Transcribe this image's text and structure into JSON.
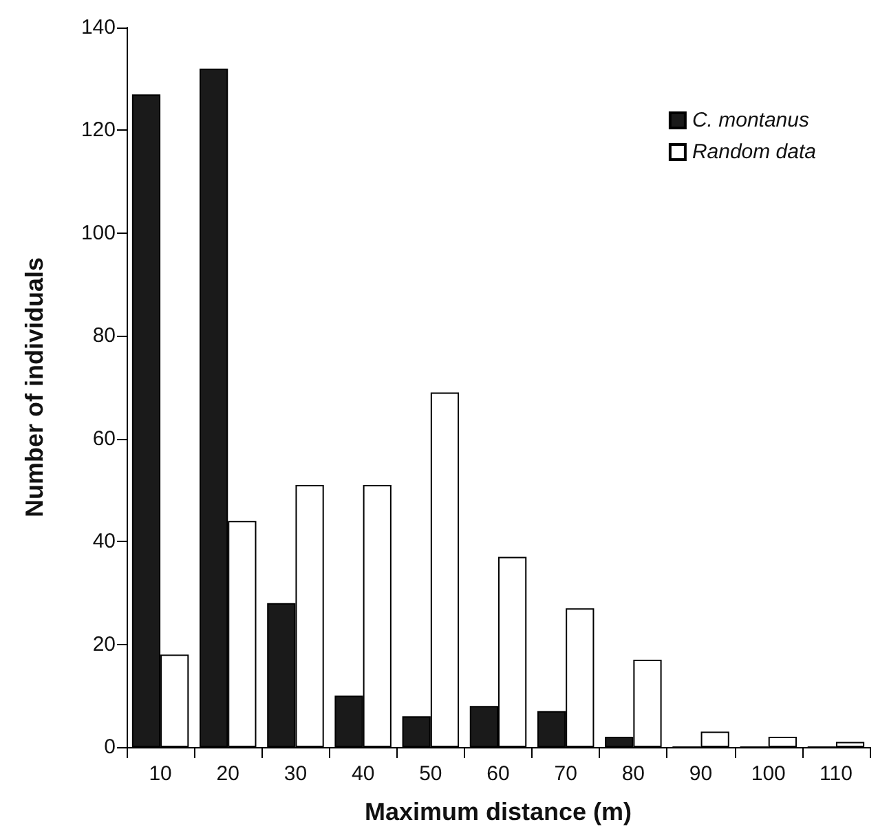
{
  "chart_data": {
    "type": "bar",
    "xlabel": "Maximum distance (m)",
    "ylabel": "Number of individuals",
    "categories": [
      "10",
      "20",
      "30",
      "40",
      "50",
      "60",
      "70",
      "80",
      "90",
      "100",
      "110"
    ],
    "series": [
      {
        "name": "C. montanus",
        "color": "#1a1a1a",
        "values": [
          127,
          132,
          28,
          10,
          6,
          8,
          7,
          2,
          0,
          0,
          0
        ]
      },
      {
        "name": "Random data",
        "color": "#ffffff",
        "values": [
          18,
          44,
          51,
          51,
          69,
          37,
          27,
          17,
          3,
          2,
          1
        ]
      }
    ],
    "ylim": [
      0,
      140
    ],
    "yticks": [
      0,
      20,
      40,
      60,
      80,
      100,
      120,
      140
    ],
    "grid": false,
    "legend": "top right"
  }
}
